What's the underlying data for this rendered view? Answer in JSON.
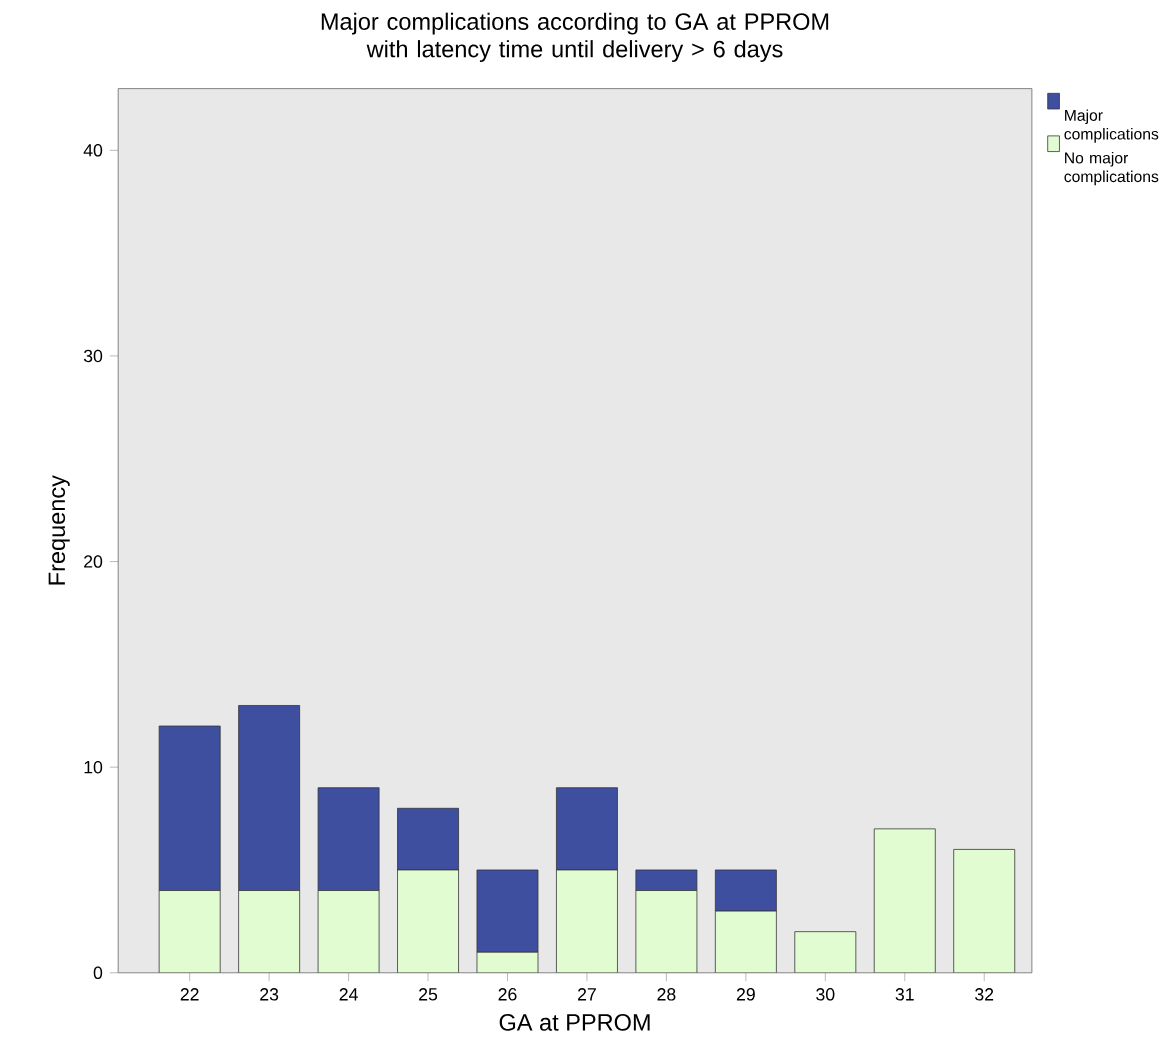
{
  "chart_data": {
    "type": "bar",
    "title": "Major complications according to GA at PPROM with latency time until delivery > 6 days",
    "xlabel": "GA at PPROM",
    "ylabel": "Frequency",
    "categories": [
      "22",
      "23",
      "24",
      "25",
      "26",
      "27",
      "28",
      "29",
      "30",
      "31",
      "32"
    ],
    "stacked": true,
    "series": [
      {
        "name": "No major complications",
        "color": "#e2fcd2",
        "values": [
          4,
          4,
          4,
          5,
          1,
          5,
          4,
          3,
          2,
          7,
          6
        ]
      },
      {
        "name": "Major complications",
        "color": "#3f4fa0",
        "values": [
          8,
          9,
          5,
          3,
          4,
          4,
          1,
          2,
          null,
          null,
          null
        ]
      }
    ],
    "ylim": [
      0,
      43
    ],
    "yticks": [
      0,
      10,
      20,
      30,
      40
    ],
    "grid": false,
    "legend": "top right"
  }
}
